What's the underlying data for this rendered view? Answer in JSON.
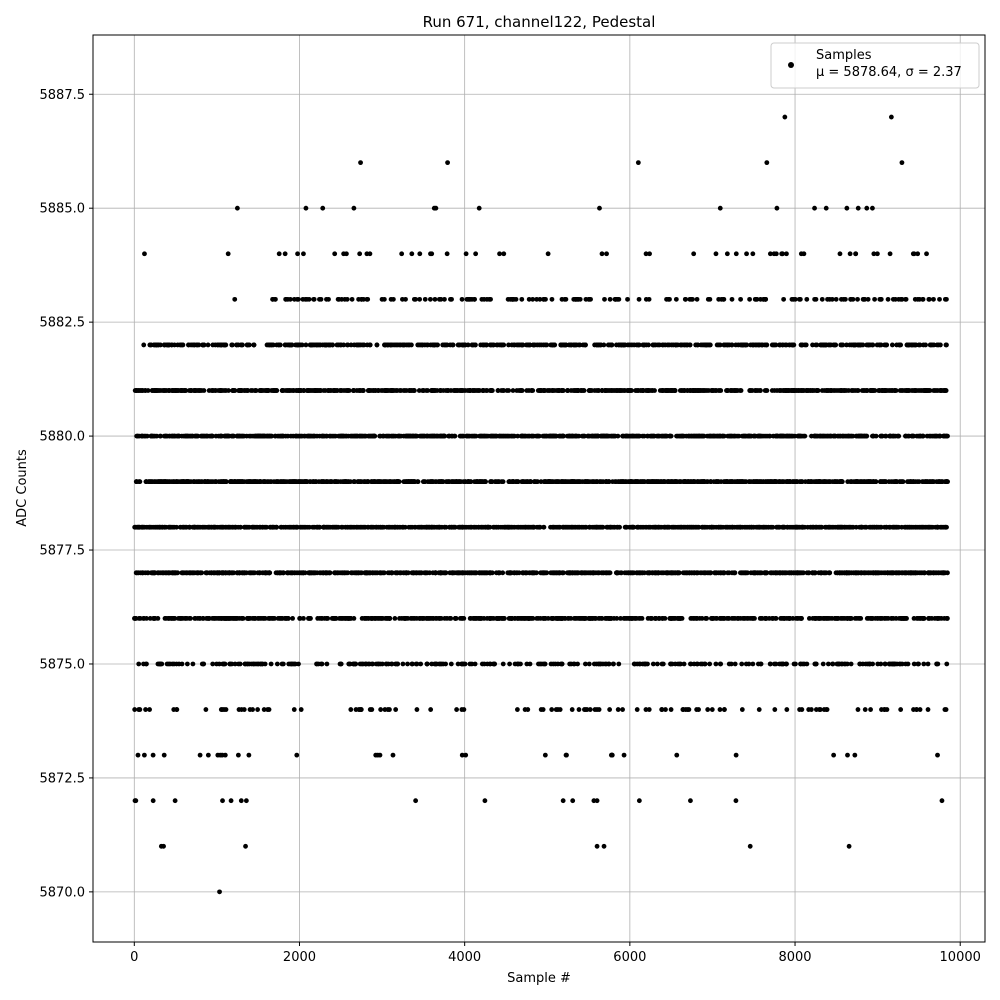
{
  "chart_data": {
    "type": "scatter",
    "title": "Run 671, channel122, Pedestal",
    "xlabel": "Sample #",
    "ylabel": "ADC Counts",
    "xlim": [
      -500,
      10300
    ],
    "ylim": [
      5868.9,
      5888.8
    ],
    "xticks": [
      0,
      2000,
      4000,
      6000,
      8000,
      10000
    ],
    "xtick_labels": [
      "0",
      "2000",
      "4000",
      "6000",
      "8000",
      "10000"
    ],
    "yticks": [
      5870.0,
      5872.5,
      5875.0,
      5877.5,
      5880.0,
      5882.5,
      5885.0,
      5887.5
    ],
    "ytick_labels": [
      "5870.0",
      "5872.5",
      "5875.0",
      "5877.5",
      "5880.0",
      "5882.5",
      "5885.0",
      "5887.5"
    ],
    "grid": true,
    "legend": {
      "placement": "top-right",
      "entries": [
        {
          "name": "Samples",
          "stats": "μ = 5878.64, σ = 2.37",
          "color": "#000000"
        }
      ]
    },
    "series": [
      {
        "name": "Samples",
        "color": "#000000",
        "sample_count": 9850,
        "mean": 5878.64,
        "std": 2.37,
        "level_ranges": [
          {
            "y": 5870,
            "x_ranges": [
              [
                520,
                1300
              ]
            ],
            "density": 0.006
          },
          {
            "y": 5871,
            "x_ranges": [
              [
                0,
                1650
              ],
              [
                5500,
                6250
              ],
              [
                7450,
                7500
              ],
              [
                8650,
                8700
              ]
            ],
            "density": 0.02
          },
          {
            "y": 5872,
            "x_ranges": [
              [
                0,
                1650
              ],
              [
                3400,
                3450
              ],
              [
                4200,
                4250
              ],
              [
                4950,
                5650
              ],
              [
                6100,
                6150
              ],
              [
                6700,
                6750
              ],
              [
                7250,
                7300
              ],
              [
                9750,
                9800
              ]
            ],
            "density": 0.05
          },
          {
            "y": 5873,
            "x_ranges": [
              [
                0,
                1650
              ],
              [
                1950,
                2050
              ],
              [
                2550,
                3150
              ],
              [
                3800,
                4100
              ],
              [
                4850,
                6000
              ],
              [
                6550,
                6750
              ],
              [
                7200,
                7300
              ],
              [
                8450,
                8900
              ],
              [
                9700,
                9850
              ]
            ],
            "density": 0.07
          },
          {
            "y": 5874,
            "x_ranges": [
              [
                0,
                1700
              ],
              [
                1900,
                2050
              ],
              [
                2450,
                3600
              ],
              [
                3850,
                4050
              ],
              [
                4550,
                9850
              ]
            ],
            "density": 0.13
          },
          {
            "y": 5875,
            "x_ranges": [
              [
                0,
                2000
              ],
              [
                2200,
                9850
              ]
            ],
            "density": 0.32
          },
          {
            "y": 5876,
            "x_ranges": [
              [
                0,
                9850
              ]
            ],
            "density": 0.66
          },
          {
            "y": 5877,
            "x_ranges": [
              [
                0,
                9850
              ]
            ],
            "density": 0.92
          },
          {
            "y": 5878,
            "x_ranges": [
              [
                0,
                9850
              ]
            ],
            "density": 0.98
          },
          {
            "y": 5879,
            "x_ranges": [
              [
                0,
                9850
              ]
            ],
            "density": 0.97
          },
          {
            "y": 5880,
            "x_ranges": [
              [
                0,
                9850
              ]
            ],
            "density": 0.85
          },
          {
            "y": 5881,
            "x_ranges": [
              [
                0,
                9850
              ]
            ],
            "density": 0.72
          },
          {
            "y": 5882,
            "x_ranges": [
              [
                100,
                1450
              ],
              [
                1600,
                9850
              ]
            ],
            "density": 0.55
          },
          {
            "y": 5883,
            "x_ranges": [
              [
                1200,
                1250
              ],
              [
                1650,
                9850
              ]
            ],
            "density": 0.22
          },
          {
            "y": 5884,
            "x_ranges": [
              [
                100,
                150
              ],
              [
                1100,
                1150
              ],
              [
                1700,
                4600
              ],
              [
                5000,
                5050
              ],
              [
                5450,
                9750
              ]
            ],
            "density": 0.07
          },
          {
            "y": 5885,
            "x_ranges": [
              [
                1200,
                1250
              ],
              [
                1900,
                3850
              ],
              [
                4150,
                4200
              ],
              [
                5600,
                9200
              ]
            ],
            "density": 0.025
          },
          {
            "y": 5886,
            "x_ranges": [
              [
                2700,
                2800
              ],
              [
                3250,
                3850
              ],
              [
                6100,
                6150
              ],
              [
                7650,
                7950
              ],
              [
                9200,
                9300
              ]
            ],
            "density": 0.012
          },
          {
            "y": 5887,
            "x_ranges": [
              [
                7850,
                7900
              ],
              [
                9150,
                9200
              ]
            ],
            "density": 0.004
          }
        ]
      }
    ]
  }
}
